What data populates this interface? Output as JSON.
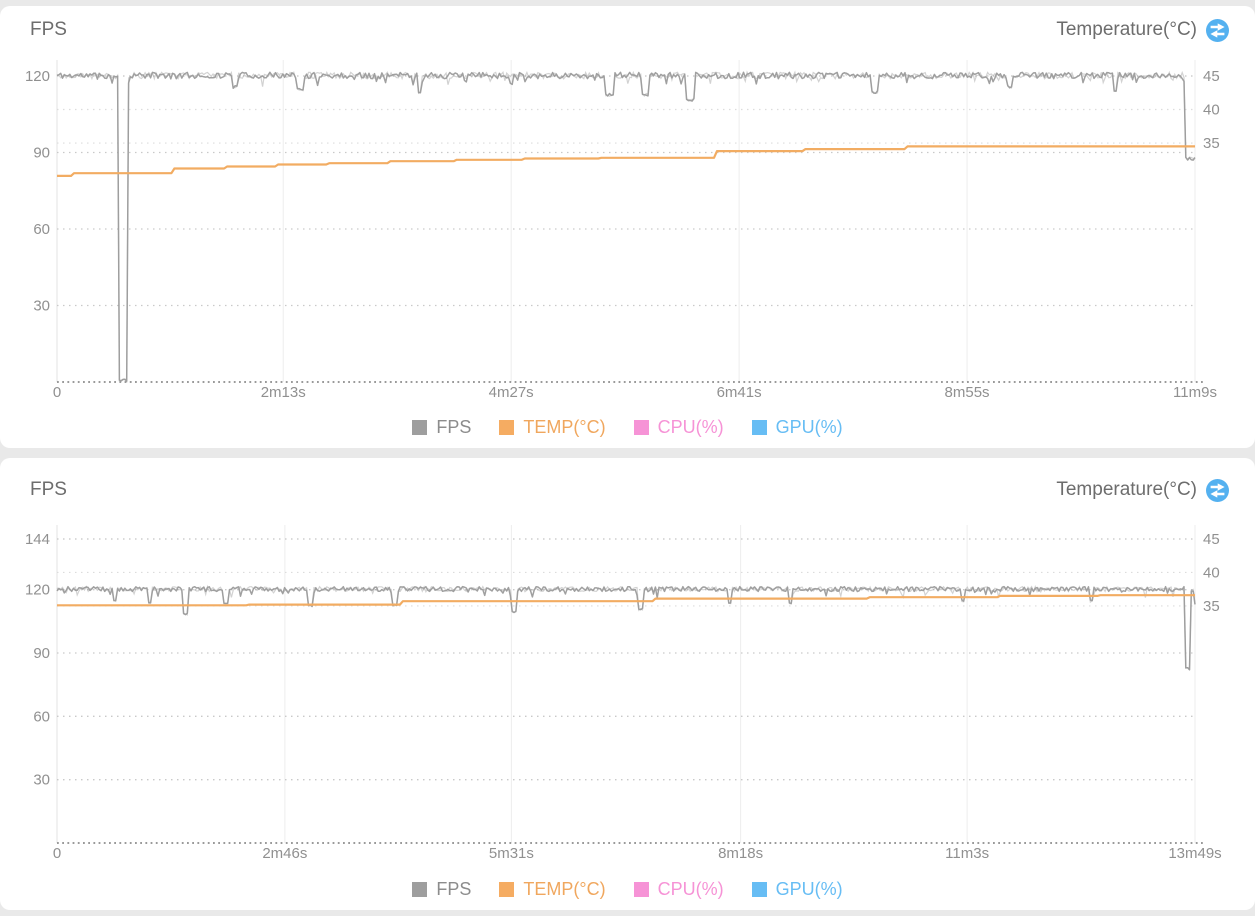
{
  "page": {
    "background": "#e9e9e9",
    "card_background": "#ffffff"
  },
  "icons": {
    "axis_swap": {
      "name": "swap-horizontal-icon",
      "color": "#54B1F0",
      "glyph_color": "#ffffff"
    }
  },
  "chart_data": [
    {
      "type": "line",
      "ylabel_left": "FPS",
      "ylabel_right": "Temperature(°C)",
      "duration_seconds": 669,
      "x_tick_labels": [
        "0",
        "2m13s",
        "4m27s",
        "6m41s",
        "8m55s",
        "11m9s"
      ],
      "x_tick_seconds": [
        0,
        133,
        267,
        401,
        535,
        669
      ],
      "left_axis": {
        "unit": "FPS",
        "ticks": [
          120,
          90,
          60,
          30
        ],
        "min": 0
      },
      "right_axis": {
        "unit": "°C",
        "ticks": [
          45,
          40,
          35
        ],
        "top_value": 45,
        "left_units_per_degree": 2.63
      },
      "grid": {
        "horizontal": "dotted",
        "vertical_at_x_ticks": true
      },
      "legend": [
        {
          "label": "FPS",
          "color": "#9E9E9E",
          "text_color": "#8C8C8C"
        },
        {
          "label": "TEMP(°C)",
          "color": "#F5AC62",
          "text_color": "#F0A75E"
        },
        {
          "label": "CPU(%)",
          "color": "#F693D6",
          "text_color": "#F693D6"
        },
        {
          "label": "GPU(%)",
          "color": "#67BDF4",
          "text_color": "#67BDF4"
        }
      ],
      "series": [
        {
          "name": "FPS",
          "axis": "left",
          "color": "#9B9B9B",
          "render": "noisy",
          "baseline": 120.2,
          "noise": 1.25,
          "seed": 11,
          "end_value": 88,
          "dips": [
            {
              "t": 39,
              "v": 0,
              "w": 5
            },
            {
              "t": 105,
              "v": 115,
              "w": 3
            },
            {
              "t": 143,
              "v": 114,
              "w": 4
            },
            {
              "t": 213,
              "v": 113,
              "w": 3
            },
            {
              "t": 325,
              "v": 112,
              "w": 5
            },
            {
              "t": 346,
              "v": 112,
              "w": 4
            },
            {
              "t": 372,
              "v": 110,
              "w": 5
            },
            {
              "t": 481,
              "v": 113,
              "w": 4
            },
            {
              "t": 560,
              "v": 115,
              "w": 3
            },
            {
              "t": 622,
              "v": 114,
              "w": 3
            },
            {
              "t": 666,
              "v": 87,
              "w": 5
            }
          ]
        },
        {
          "name": "TEMP(°C)",
          "axis": "right",
          "color": "#F2AC62",
          "render": "step",
          "points": [
            [
              0,
              30.1
            ],
            [
              10,
              30.5
            ],
            [
              69,
              31.2
            ],
            [
              100,
              31.5
            ],
            [
              130,
              31.8
            ],
            [
              160,
              32.0
            ],
            [
              196,
              32.3
            ],
            [
              235,
              32.5
            ],
            [
              275,
              32.7
            ],
            [
              320,
              32.8
            ],
            [
              388,
              33.8
            ],
            [
              440,
              34.1
            ],
            [
              500,
              34.5
            ],
            [
              669,
              34.5
            ]
          ]
        }
      ]
    },
    {
      "type": "line",
      "ylabel_left": "FPS",
      "ylabel_right": "Temperature(°C)",
      "duration_seconds": 829,
      "x_tick_labels": [
        "0",
        "2m46s",
        "5m31s",
        "8m18s",
        "11m3s",
        "13m49s"
      ],
      "x_tick_seconds": [
        0,
        166,
        331,
        498,
        663,
        829
      ],
      "left_axis": {
        "unit": "FPS",
        "ticks": [
          144,
          120,
          90,
          60,
          30
        ],
        "min": 0
      },
      "right_axis": {
        "unit": "°C",
        "ticks": [
          45,
          40,
          35
        ],
        "top_value": 45,
        "left_units_per_degree": 3.17
      },
      "grid": {
        "horizontal": "dotted",
        "vertical_at_x_ticks": true
      },
      "legend": [
        {
          "label": "FPS",
          "color": "#9E9E9E",
          "text_color": "#8C8C8C"
        },
        {
          "label": "TEMP(°C)",
          "color": "#F5AC62",
          "text_color": "#F0A75E"
        },
        {
          "label": "CPU(%)",
          "color": "#F693D6",
          "text_color": "#F693D6"
        },
        {
          "label": "GPU(%)",
          "color": "#67BDF4",
          "text_color": "#67BDF4"
        }
      ],
      "series": [
        {
          "name": "FPS",
          "axis": "left",
          "color": "#9B9B9B",
          "render": "noisy",
          "baseline": 120.3,
          "noise": 1.15,
          "seed": 23,
          "end_value": 113,
          "dips": [
            {
              "t": 42,
              "v": 114,
              "w": 3
            },
            {
              "t": 68,
              "v": 113,
              "w": 3
            },
            {
              "t": 94,
              "v": 108,
              "w": 4
            },
            {
              "t": 123,
              "v": 113,
              "w": 3
            },
            {
              "t": 184,
              "v": 112,
              "w": 4
            },
            {
              "t": 246,
              "v": 112,
              "w": 4
            },
            {
              "t": 333,
              "v": 109,
              "w": 4
            },
            {
              "t": 425,
              "v": 110,
              "w": 4
            },
            {
              "t": 490,
              "v": 113,
              "w": 3
            },
            {
              "t": 534,
              "v": 113,
              "w": 3
            },
            {
              "t": 660,
              "v": 114,
              "w": 3
            },
            {
              "t": 753,
              "v": 114,
              "w": 3
            },
            {
              "t": 824,
              "v": 82,
              "w": 4
            }
          ]
        },
        {
          "name": "TEMP(°C)",
          "axis": "right",
          "color": "#F2AC62",
          "render": "step",
          "points": [
            [
              0,
              35.1
            ],
            [
              140,
              35.2
            ],
            [
              252,
              35.7
            ],
            [
              436,
              36.1
            ],
            [
              592,
              36.3
            ],
            [
              687,
              36.5
            ],
            [
              760,
              36.6
            ],
            [
              829,
              36.6
            ]
          ]
        }
      ]
    }
  ]
}
